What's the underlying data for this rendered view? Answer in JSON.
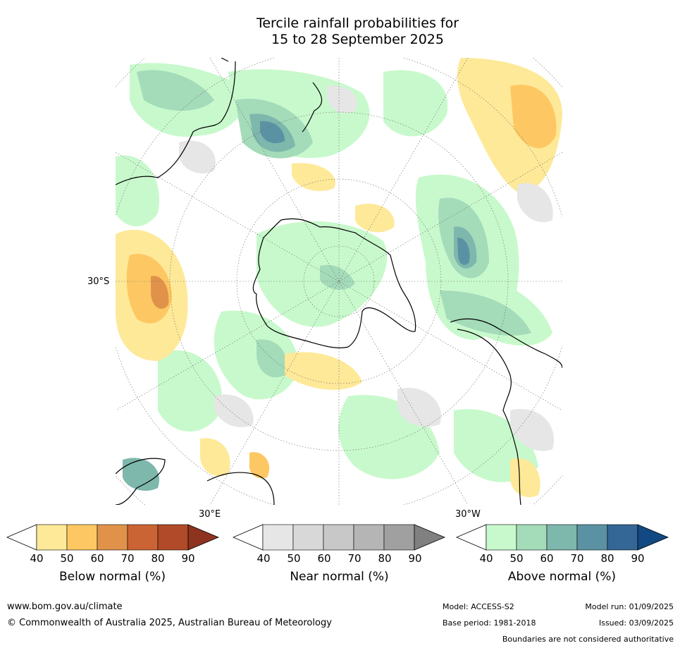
{
  "title_line1": "Tercile rainfall probabilities for",
  "title_line2": "15 to 28 September 2025",
  "map_labels": {
    "lat_30s": "30°S",
    "lon_30e": "30°E",
    "lon_30w": "30°W"
  },
  "colorbars": [
    {
      "name": "below",
      "label": "Below normal (%)",
      "ticks": [
        "40",
        "50",
        "60",
        "70",
        "80",
        "90"
      ],
      "colors": [
        "#ffffff",
        "#fee999",
        "#fdc863",
        "#e0924a",
        "#cb6434",
        "#b04a28",
        "#8e3320"
      ]
    },
    {
      "name": "near",
      "label": "Near normal (%)",
      "ticks": [
        "40",
        "50",
        "60",
        "70",
        "80",
        "90"
      ],
      "colors": [
        "#ffffff",
        "#e6e6e6",
        "#d8d8d8",
        "#c8c8c8",
        "#b5b5b5",
        "#a0a0a0",
        "#808080"
      ]
    },
    {
      "name": "above",
      "label": "Above normal (%)",
      "ticks": [
        "40",
        "50",
        "60",
        "70",
        "80",
        "90"
      ],
      "colors": [
        "#ffffff",
        "#c8f9cc",
        "#a4dbb9",
        "#7eb7ac",
        "#5b92a3",
        "#346696",
        "#124983"
      ]
    }
  ],
  "footer": {
    "url": "www.bom.gov.au/climate",
    "copyright": "© Commonwealth of Australia 2025, Australian Bureau of Meteorology",
    "model": "Model: ACCESS-S2",
    "model_run": "Model run: 01/09/2025",
    "base_period": "Base period: 1981-2018",
    "issued": "Issued: 03/09/2025",
    "disclaimer": "Boundaries are not considered authoritative"
  }
}
